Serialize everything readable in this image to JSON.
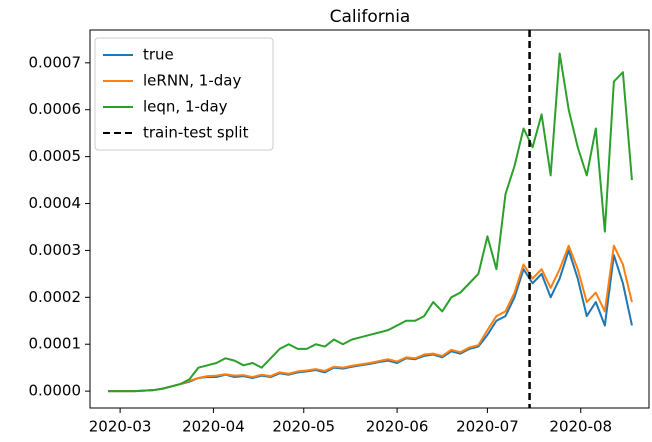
{
  "chart_data": {
    "type": "line",
    "title": "California",
    "x": [
      "2020-02-26",
      "2020-02-29",
      "2020-03-03",
      "2020-03-06",
      "2020-03-09",
      "2020-03-12",
      "2020-03-15",
      "2020-03-18",
      "2020-03-21",
      "2020-03-24",
      "2020-03-27",
      "2020-03-30",
      "2020-04-02",
      "2020-04-05",
      "2020-04-08",
      "2020-04-11",
      "2020-04-14",
      "2020-04-17",
      "2020-04-20",
      "2020-04-23",
      "2020-04-26",
      "2020-04-29",
      "2020-05-02",
      "2020-05-05",
      "2020-05-08",
      "2020-05-11",
      "2020-05-14",
      "2020-05-17",
      "2020-05-20",
      "2020-05-23",
      "2020-05-26",
      "2020-05-29",
      "2020-06-01",
      "2020-06-04",
      "2020-06-07",
      "2020-06-10",
      "2020-06-13",
      "2020-06-16",
      "2020-06-19",
      "2020-06-22",
      "2020-06-25",
      "2020-06-28",
      "2020-07-01",
      "2020-07-04",
      "2020-07-07",
      "2020-07-10",
      "2020-07-13",
      "2020-07-16",
      "2020-07-19",
      "2020-07-22",
      "2020-07-25",
      "2020-07-28",
      "2020-07-31",
      "2020-08-03",
      "2020-08-06",
      "2020-08-09",
      "2020-08-12",
      "2020-08-15",
      "2020-08-18"
    ],
    "series": [
      {
        "name": "true",
        "color": "#1f77b4",
        "values": [
          0,
          0,
          0,
          0,
          1e-06,
          2e-06,
          5e-06,
          1e-05,
          1.5e-05,
          2e-05,
          2.8e-05,
          3e-05,
          3e-05,
          3.5e-05,
          3e-05,
          3.2e-05,
          2.8e-05,
          3.3e-05,
          3e-05,
          3.8e-05,
          3.5e-05,
          4e-05,
          4.2e-05,
          4.5e-05,
          4e-05,
          5e-05,
          4.8e-05,
          5.2e-05,
          5.5e-05,
          5.8e-05,
          6.2e-05,
          6.5e-05,
          6e-05,
          7e-05,
          6.8e-05,
          7.5e-05,
          7.8e-05,
          7.2e-05,
          8.5e-05,
          8e-05,
          9e-05,
          9.5e-05,
          0.00012,
          0.00015,
          0.00016,
          0.0002,
          0.00026,
          0.00023,
          0.00025,
          0.0002,
          0.00024,
          0.0003,
          0.00024,
          0.00016,
          0.00019,
          0.00014,
          0.00029,
          0.00023,
          0.00014
        ]
      },
      {
        "name": "leRNN, 1-day",
        "color": "#ff7f0e",
        "values": [
          0,
          0,
          0,
          0,
          1e-06,
          2e-06,
          5e-06,
          1e-05,
          1.5e-05,
          2.2e-05,
          2.8e-05,
          3.2e-05,
          3.3e-05,
          3.6e-05,
          3.3e-05,
          3.4e-05,
          3e-05,
          3.5e-05,
          3.2e-05,
          4e-05,
          3.7e-05,
          4.2e-05,
          4.4e-05,
          4.7e-05,
          4.3e-05,
          5.2e-05,
          5e-05,
          5.4e-05,
          5.7e-05,
          6e-05,
          6.4e-05,
          6.8e-05,
          6.3e-05,
          7.2e-05,
          7e-05,
          7.8e-05,
          8e-05,
          7.5e-05,
          8.8e-05,
          8.3e-05,
          9.3e-05,
          9.8e-05,
          0.00013,
          0.00016,
          0.00017,
          0.00021,
          0.00027,
          0.00024,
          0.00026,
          0.00022,
          0.00026,
          0.00031,
          0.00026,
          0.00019,
          0.00021,
          0.00017,
          0.00031,
          0.00027,
          0.00019
        ]
      },
      {
        "name": "leqn, 1-day",
        "color": "#2ca02c",
        "values": [
          0,
          0,
          0,
          0,
          1e-06,
          2e-06,
          5e-06,
          1e-05,
          1.5e-05,
          2.5e-05,
          5e-05,
          5.5e-05,
          6e-05,
          7e-05,
          6.5e-05,
          5.5e-05,
          6e-05,
          5e-05,
          7e-05,
          9e-05,
          0.0001,
          9e-05,
          9e-05,
          0.0001,
          9.5e-05,
          0.00011,
          0.0001,
          0.00011,
          0.000115,
          0.00012,
          0.000125,
          0.00013,
          0.00014,
          0.00015,
          0.00015,
          0.00016,
          0.00019,
          0.00017,
          0.0002,
          0.00021,
          0.00023,
          0.00025,
          0.00033,
          0.00026,
          0.00042,
          0.00048,
          0.00056,
          0.00052,
          0.00059,
          0.00046,
          0.00072,
          0.0006,
          0.00052,
          0.00046,
          0.00056,
          0.00034,
          0.00066,
          0.00068,
          0.00045
        ]
      }
    ],
    "split": {
      "name": "train-test split",
      "x": "2020-07-15",
      "color": "#000000"
    },
    "xlim": [
      "2020-02-20",
      "2020-08-24"
    ],
    "xticks": [
      {
        "value": "2020-03-01",
        "label": "2020-03"
      },
      {
        "value": "2020-04-01",
        "label": "2020-04"
      },
      {
        "value": "2020-05-01",
        "label": "2020-05"
      },
      {
        "value": "2020-06-01",
        "label": "2020-06"
      },
      {
        "value": "2020-07-01",
        "label": "2020-07"
      },
      {
        "value": "2020-08-01",
        "label": "2020-08"
      }
    ],
    "ylim": [
      -3.6e-05,
      0.00077
    ],
    "yticks": [
      {
        "value": 0,
        "label": "0.0000"
      },
      0.0001,
      0.0002,
      0.0003,
      0.0004,
      0.0005,
      0.0006,
      0.0007
    ],
    "legend": "upper left"
  }
}
